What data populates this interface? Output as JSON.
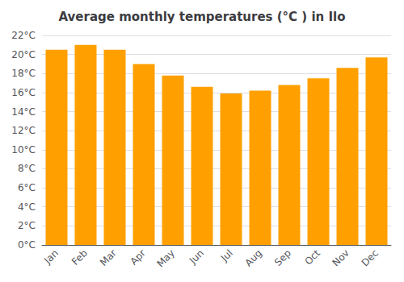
{
  "chart_data": {
    "type": "bar",
    "title": "Average monthly temperatures (°C ) in Ilo",
    "categories": [
      "Jan",
      "Feb",
      "Mar",
      "Apr",
      "May",
      "Jun",
      "Jul",
      "Aug",
      "Sep",
      "Oct",
      "Nov",
      "Dec"
    ],
    "values": [
      20.5,
      21.0,
      20.5,
      19.0,
      17.8,
      16.6,
      15.9,
      16.2,
      16.8,
      17.5,
      18.6,
      19.7
    ],
    "color": "#FFA000",
    "ylim": [
      0,
      22
    ],
    "yticks": [
      {
        "value": 0,
        "label": "0°C"
      },
      {
        "value": 2,
        "label": "2°C"
      },
      {
        "value": 4,
        "label": "4°C"
      },
      {
        "value": 6,
        "label": "6°C"
      },
      {
        "value": 8,
        "label": "8°C"
      },
      {
        "value": 10,
        "label": "10°C"
      },
      {
        "value": 12,
        "label": "12°C"
      },
      {
        "value": 14,
        "label": "14°C"
      },
      {
        "value": 16,
        "label": "16°C"
      },
      {
        "value": 18,
        "label": "18°C"
      },
      {
        "value": 20,
        "label": "20°C"
      },
      {
        "value": 22,
        "label": "22°C"
      }
    ],
    "grid": true
  }
}
